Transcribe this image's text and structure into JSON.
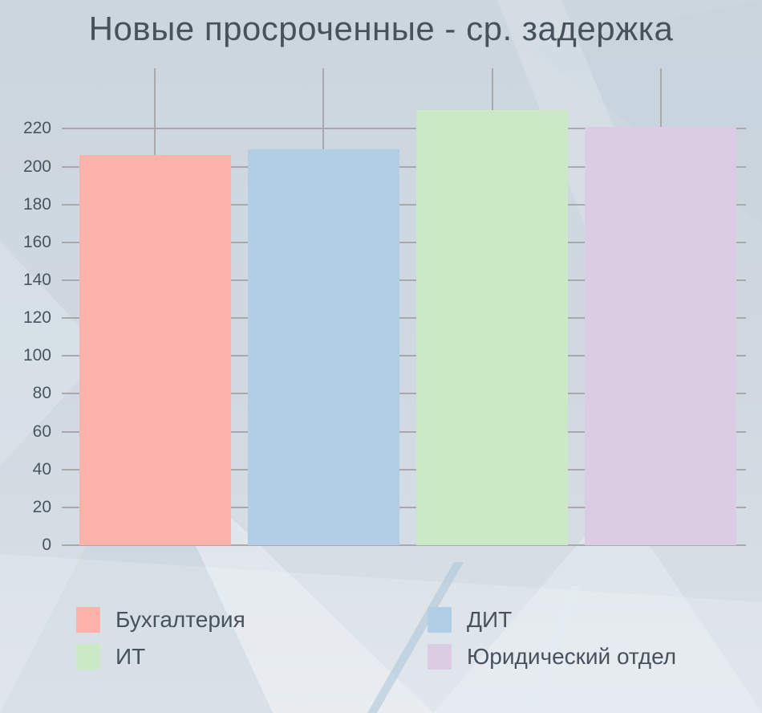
{
  "title": "Новые просроченные - ср. задержка",
  "chart_data": {
    "type": "bar",
    "title": "Новые просроченные - ср. задержка",
    "categories": [
      "Бухгалтерия",
      "ДИТ",
      "ИТ",
      "Юридический отдел"
    ],
    "values": [
      206,
      209,
      230,
      221
    ],
    "xlabel": "",
    "ylabel": "",
    "ylim": [
      0,
      252
    ],
    "yticks": [
      0,
      20,
      40,
      60,
      80,
      100,
      120,
      140,
      160,
      180,
      200,
      220
    ],
    "grid": true,
    "legend_position": "bottom",
    "bar_colors": [
      "#fbb2aa",
      "#b1cee5",
      "#cbe9c4",
      "#dbcce3"
    ]
  },
  "legend": {
    "items": [
      {
        "label": "Бухгалтерия",
        "color": "#fbb2aa"
      },
      {
        "label": "ДИТ",
        "color": "#b1cee5"
      },
      {
        "label": "ИТ",
        "color": "#cbe9c4"
      },
      {
        "label": "Юридический отдел",
        "color": "#dbcce3"
      }
    ]
  },
  "colors": {
    "title_text": "#47525c",
    "axis_text": "#48545f",
    "gridline": "#a9a8ad",
    "background_top": "#ccd6de",
    "background_bottom": "#dce3e9"
  }
}
